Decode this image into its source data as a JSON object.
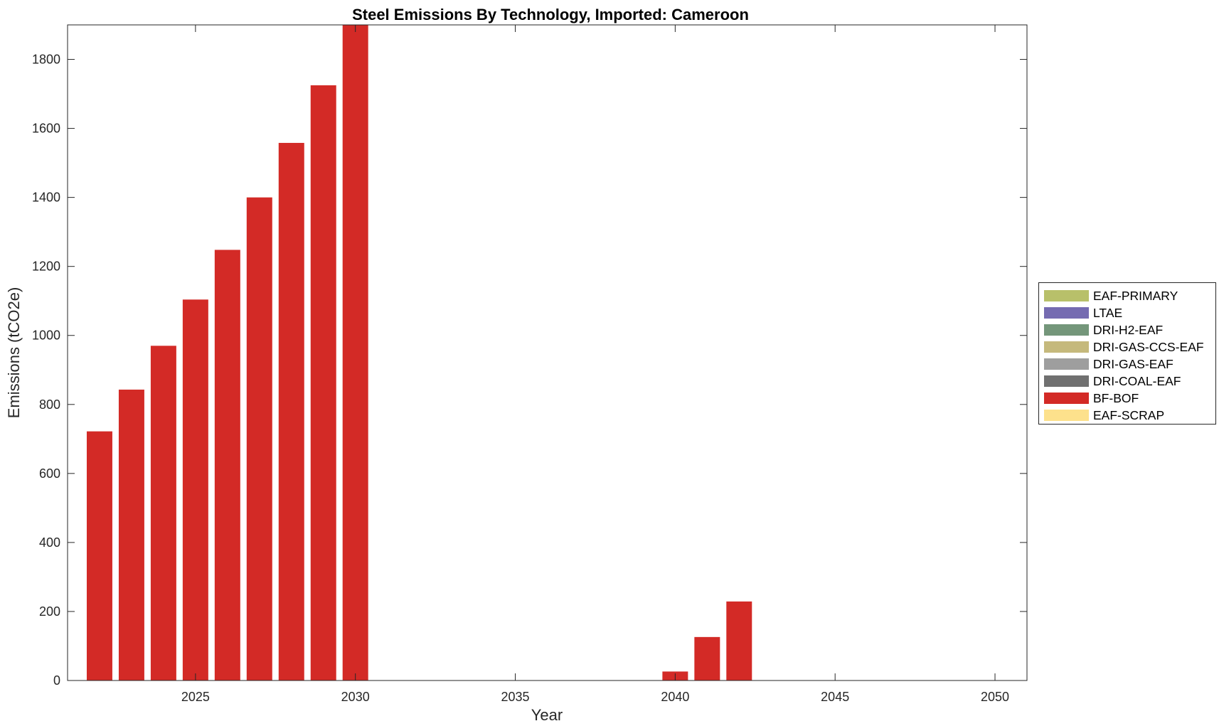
{
  "chart_data": {
    "type": "bar",
    "title": "Steel Emissions By Technology, Imported: Cameroon",
    "xlabel": "Year",
    "ylabel": "Emissions (tCO2e)",
    "xlim": [
      2021,
      2051
    ],
    "ylim": [
      0,
      1900
    ],
    "xticks": [
      2025,
      2030,
      2035,
      2040,
      2045,
      2050
    ],
    "yticks": [
      0,
      200,
      400,
      600,
      800,
      1000,
      1200,
      1400,
      1600,
      1800
    ],
    "grid": false,
    "legend_position": "outside-right",
    "x": [
      2022,
      2023,
      2024,
      2025,
      2026,
      2027,
      2028,
      2029,
      2030,
      2031,
      2032,
      2033,
      2034,
      2035,
      2036,
      2037,
      2038,
      2039,
      2040,
      2041,
      2042,
      2043,
      2044,
      2045,
      2046,
      2047,
      2048,
      2049,
      2050
    ],
    "series": [
      {
        "name": "EAF-PRIMARY",
        "color": "#b8c06a",
        "values": [
          0,
          0,
          0,
          0,
          0,
          0,
          0,
          0,
          0,
          0,
          0,
          0,
          0,
          0,
          0,
          0,
          0,
          0,
          0,
          0,
          0,
          0,
          0,
          0,
          0,
          0,
          0,
          0,
          0
        ]
      },
      {
        "name": "LTAE",
        "color": "#756bb1",
        "values": [
          0,
          0,
          0,
          0,
          0,
          0,
          0,
          0,
          0,
          0,
          0,
          0,
          0,
          0,
          0,
          0,
          0,
          0,
          0,
          0,
          0,
          0,
          0,
          0,
          0,
          0,
          0,
          0,
          0
        ]
      },
      {
        "name": "DRI-H2-EAF",
        "color": "#74967a",
        "values": [
          0,
          0,
          0,
          0,
          0,
          0,
          0,
          0,
          0,
          0,
          0,
          0,
          0,
          0,
          0,
          0,
          0,
          0,
          0,
          0,
          0,
          0,
          0,
          0,
          0,
          0,
          0,
          0,
          0
        ]
      },
      {
        "name": "DRI-GAS-CCS-EAF",
        "color": "#c5b97c",
        "values": [
          0,
          0,
          0,
          0,
          0,
          0,
          0,
          0,
          0,
          0,
          0,
          0,
          0,
          0,
          0,
          0,
          0,
          0,
          0,
          0,
          0,
          0,
          0,
          0,
          0,
          0,
          0,
          0,
          0
        ]
      },
      {
        "name": "DRI-GAS-EAF",
        "color": "#9e9e9e",
        "values": [
          0,
          0,
          0,
          0,
          0,
          0,
          0,
          0,
          0,
          0,
          0,
          0,
          0,
          0,
          0,
          0,
          0,
          0,
          0,
          0,
          0,
          0,
          0,
          0,
          0,
          0,
          0,
          0,
          0
        ]
      },
      {
        "name": "DRI-COAL-EAF",
        "color": "#707070",
        "values": [
          0,
          0,
          0,
          0,
          0,
          0,
          0,
          0,
          0,
          0,
          0,
          0,
          0,
          0,
          0,
          0,
          0,
          0,
          0,
          0,
          0,
          0,
          0,
          0,
          0,
          0,
          0,
          0,
          0
        ]
      },
      {
        "name": "BF-BOF",
        "color": "#d32a26",
        "values": [
          722,
          843,
          970,
          1104,
          1248,
          1400,
          1558,
          1725,
          1900,
          0,
          0,
          0,
          0,
          0,
          0,
          0,
          0,
          0,
          26,
          126,
          229,
          0,
          0,
          0,
          0,
          0,
          0,
          0,
          0
        ]
      },
      {
        "name": "EAF-SCRAP",
        "color": "#fde18c",
        "values": [
          0,
          0,
          0,
          0,
          0,
          0,
          0,
          0,
          0,
          0,
          0,
          0,
          0,
          0,
          0,
          0,
          0,
          0,
          0,
          0,
          0,
          0,
          0,
          0,
          0,
          0,
          0,
          0,
          0
        ]
      }
    ]
  }
}
